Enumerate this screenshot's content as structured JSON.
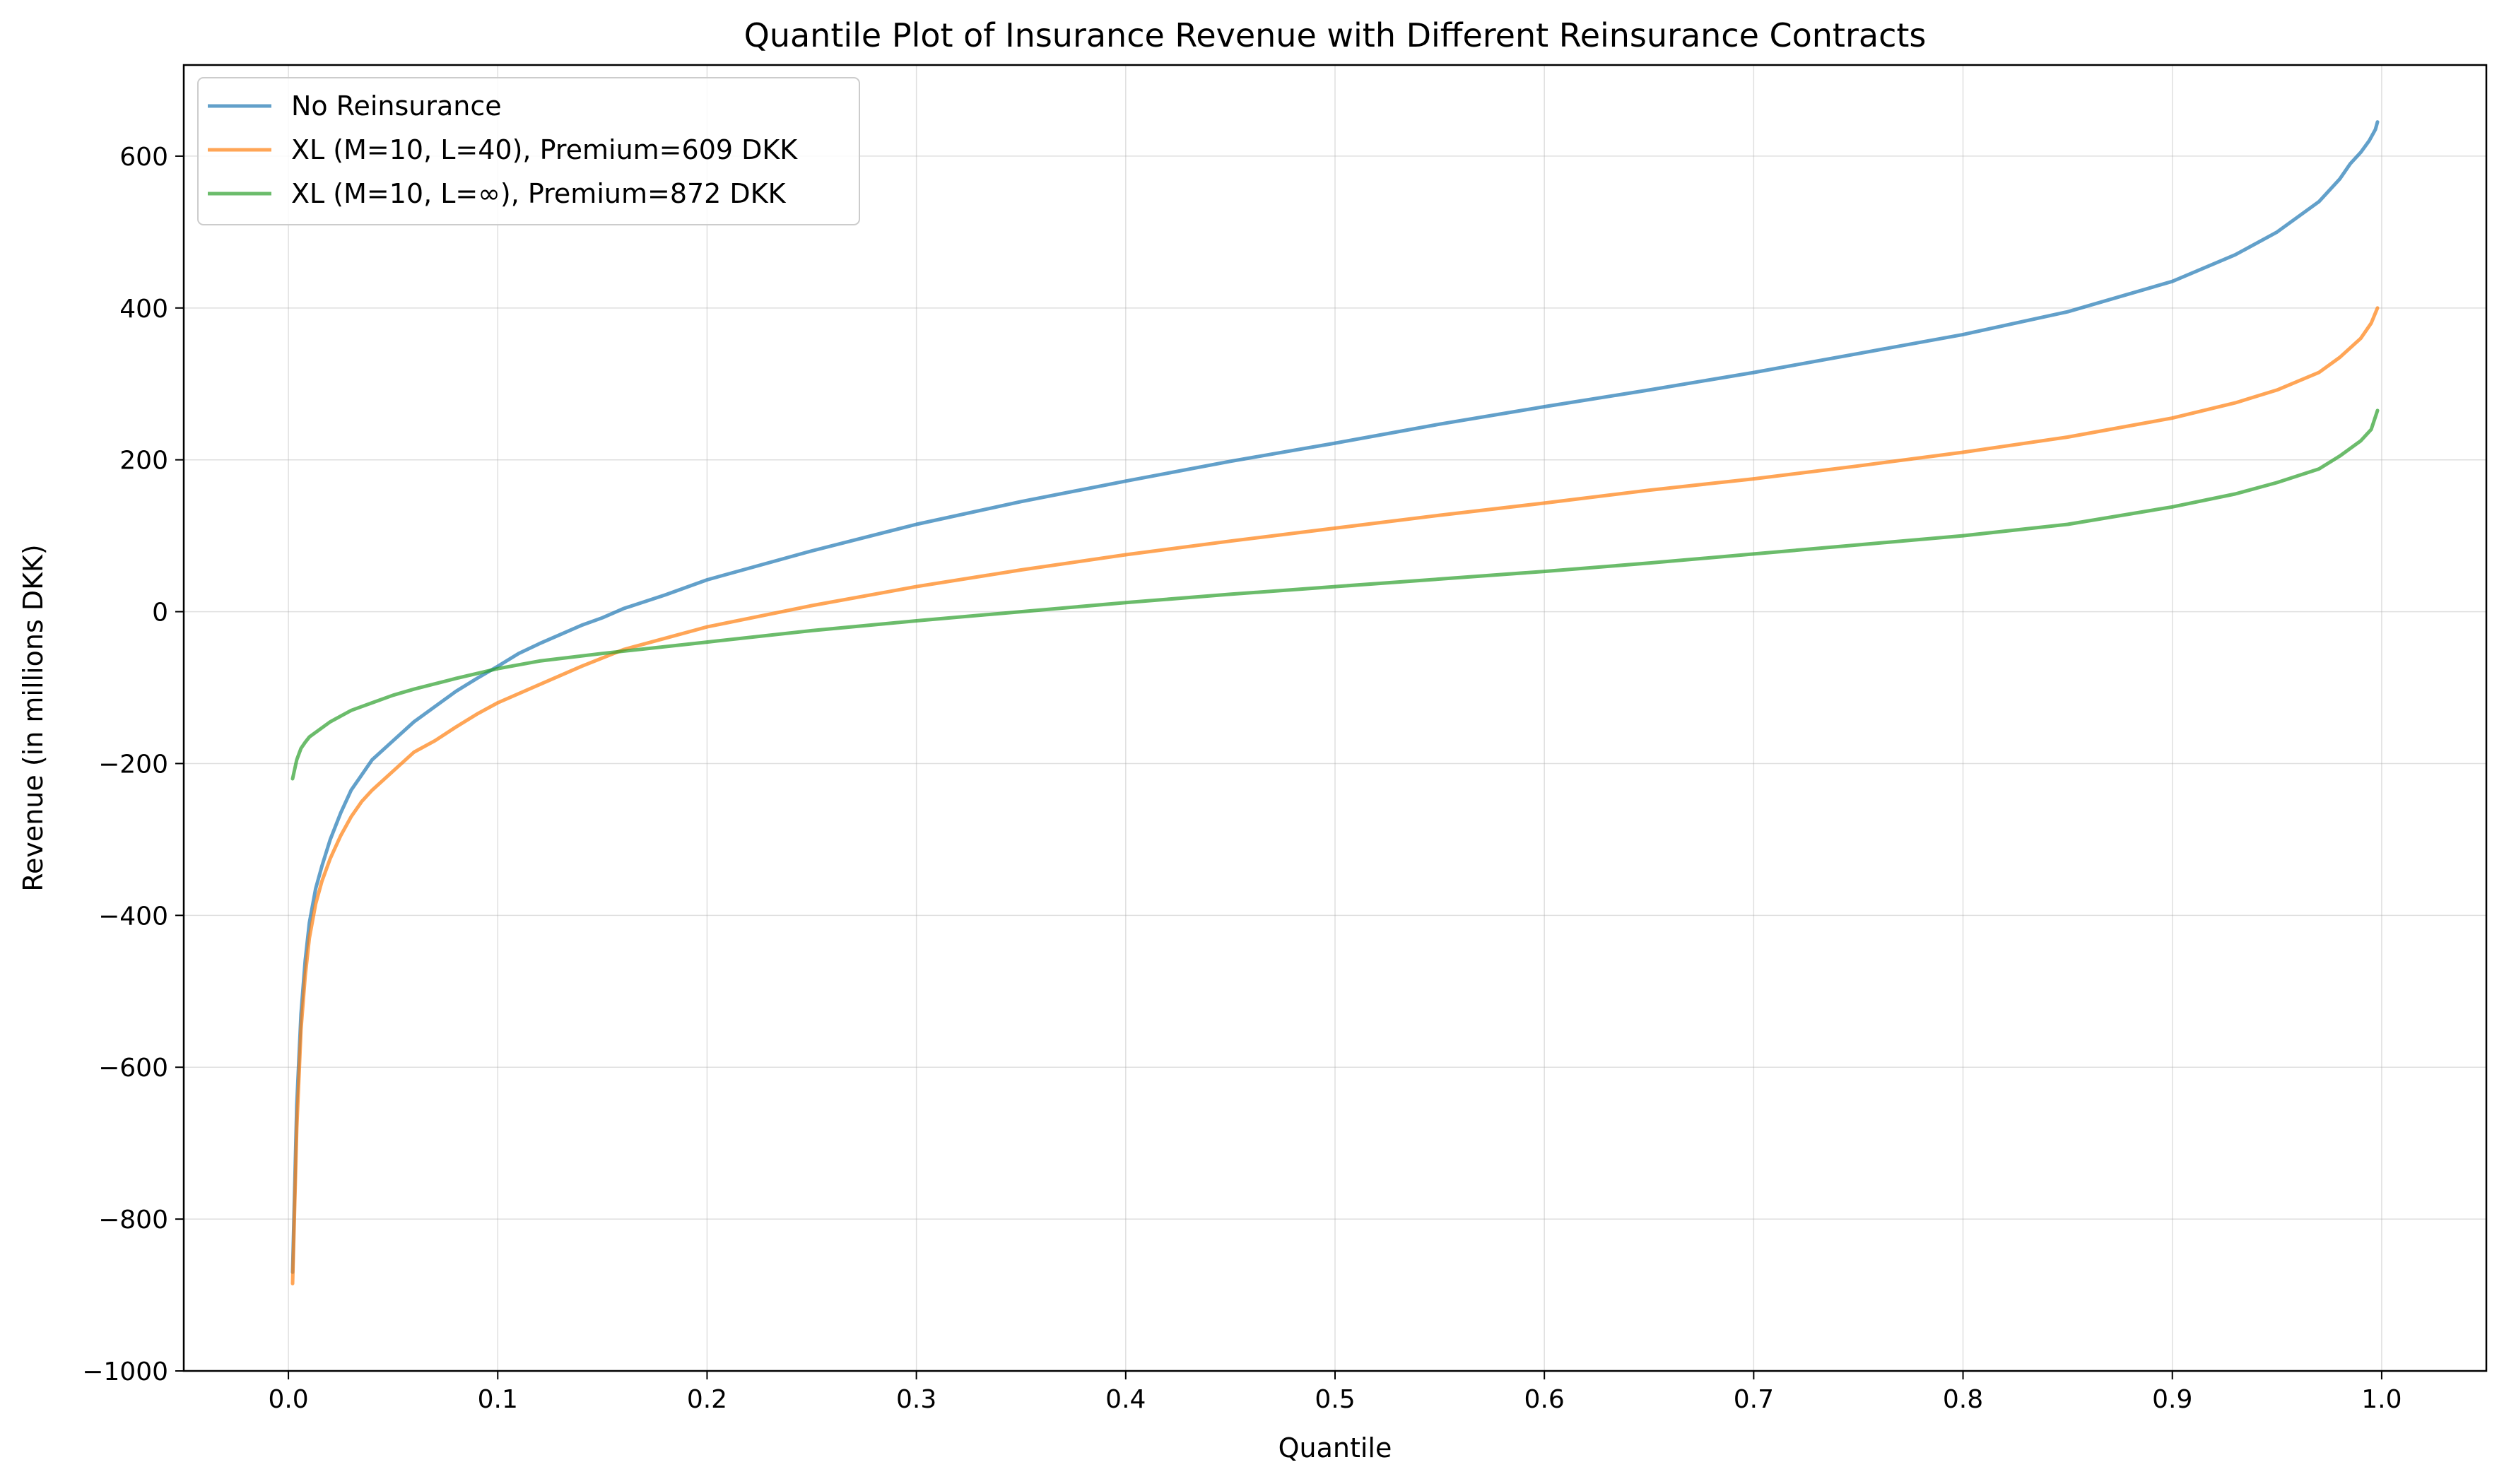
{
  "chart_data": {
    "type": "line",
    "title": "Quantile Plot of Insurance Revenue with Different Reinsurance Contracts",
    "xlabel": "Quantile",
    "ylabel": "Revenue (in millions DKK)",
    "xlim": [
      -0.05,
      1.05
    ],
    "ylim": [
      -1000,
      720
    ],
    "xticks": [
      0.0,
      0.1,
      0.2,
      0.3,
      0.4,
      0.5,
      0.6,
      0.7,
      0.8,
      0.9,
      1.0
    ],
    "xtick_labels": [
      "0.0",
      "0.1",
      "0.2",
      "0.3",
      "0.4",
      "0.5",
      "0.6",
      "0.7",
      "0.8",
      "0.9",
      "1.0"
    ],
    "yticks": [
      -1000,
      -800,
      -600,
      -400,
      -200,
      0,
      200,
      400,
      600
    ],
    "ytick_labels": [
      "−1000",
      "−800",
      "−600",
      "−400",
      "−200",
      "0",
      "200",
      "400",
      "600"
    ],
    "grid": true,
    "legend_position": "top-left",
    "series": [
      {
        "name": "No Reinsurance",
        "color": "#1f77b4",
        "x": [
          0.002,
          0.004,
          0.006,
          0.008,
          0.01,
          0.013,
          0.016,
          0.02,
          0.025,
          0.03,
          0.035,
          0.04,
          0.05,
          0.06,
          0.07,
          0.08,
          0.09,
          0.1,
          0.11,
          0.12,
          0.13,
          0.14,
          0.15,
          0.16,
          0.18,
          0.2,
          0.25,
          0.3,
          0.35,
          0.4,
          0.45,
          0.5,
          0.55,
          0.6,
          0.65,
          0.7,
          0.75,
          0.8,
          0.85,
          0.9,
          0.93,
          0.95,
          0.97,
          0.98,
          0.985,
          0.99,
          0.994,
          0.997,
          0.998
        ],
        "y": [
          -870,
          -650,
          -530,
          -460,
          -410,
          -365,
          -335,
          -300,
          -265,
          -235,
          -215,
          -195,
          -170,
          -145,
          -125,
          -105,
          -88,
          -72,
          -55,
          -42,
          -30,
          -18,
          -8,
          4,
          22,
          42,
          80,
          115,
          145,
          172,
          198,
          222,
          247,
          270,
          292,
          315,
          340,
          365,
          395,
          435,
          470,
          500,
          540,
          570,
          590,
          605,
          620,
          635,
          645
        ]
      },
      {
        "name": "XL (M=10, L=40), Premium=609 DKK",
        "color": "#ff7f0e",
        "x": [
          0.002,
          0.004,
          0.006,
          0.008,
          0.01,
          0.013,
          0.016,
          0.02,
          0.025,
          0.03,
          0.035,
          0.04,
          0.05,
          0.06,
          0.07,
          0.08,
          0.09,
          0.1,
          0.12,
          0.14,
          0.16,
          0.18,
          0.2,
          0.25,
          0.3,
          0.35,
          0.4,
          0.45,
          0.5,
          0.55,
          0.6,
          0.65,
          0.7,
          0.75,
          0.8,
          0.85,
          0.9,
          0.93,
          0.95,
          0.97,
          0.98,
          0.99,
          0.995,
          0.998
        ],
        "y": [
          -885,
          -680,
          -550,
          -480,
          -430,
          -385,
          -355,
          -325,
          -295,
          -270,
          -250,
          -235,
          -210,
          -185,
          -170,
          -152,
          -135,
          -120,
          -96,
          -72,
          -50,
          -35,
          -20,
          8,
          33,
          55,
          75,
          93,
          110,
          127,
          143,
          160,
          175,
          192,
          210,
          230,
          255,
          275,
          292,
          315,
          335,
          360,
          380,
          400
        ]
      },
      {
        "name": "XL (M=10, L=∞), Premium=872 DKK",
        "color": "#2ca02c",
        "x": [
          0.002,
          0.004,
          0.006,
          0.008,
          0.01,
          0.015,
          0.02,
          0.03,
          0.04,
          0.05,
          0.06,
          0.08,
          0.1,
          0.12,
          0.15,
          0.2,
          0.25,
          0.3,
          0.35,
          0.4,
          0.45,
          0.5,
          0.55,
          0.6,
          0.65,
          0.7,
          0.75,
          0.8,
          0.85,
          0.9,
          0.93,
          0.95,
          0.97,
          0.98,
          0.99,
          0.995,
          0.998
        ],
        "y": [
          -220,
          -195,
          -180,
          -172,
          -165,
          -155,
          -145,
          -130,
          -120,
          -110,
          -102,
          -88,
          -75,
          -65,
          -55,
          -40,
          -25,
          -12,
          0,
          12,
          23,
          33,
          43,
          53,
          64,
          76,
          88,
          100,
          115,
          138,
          155,
          170,
          188,
          205,
          225,
          240,
          265
        ]
      }
    ]
  }
}
